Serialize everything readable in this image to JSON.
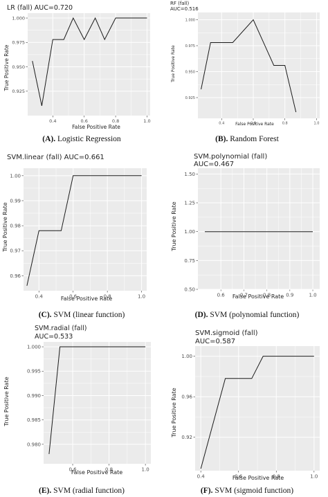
{
  "colors": {
    "panel_bg": "#ebebeb",
    "grid": "#ffffff",
    "line": "#1a1a1a",
    "text": "#222222"
  },
  "panels": [
    {
      "id": "A",
      "title": "LR (fall) AUC=0.720",
      "xlabel": "False Positive Rate",
      "ylabel": "True Positive Rate",
      "caption_label": "(A).",
      "caption_text": " Logistic Regression",
      "chart_data": {
        "type": "line",
        "x_range": [
          0.24,
          1.02
        ],
        "y_range": [
          0.9,
          1.005
        ],
        "x_ticks": [
          0.4,
          0.6,
          0.8,
          1.0
        ],
        "x_tick_labels": [
          "0.4",
          "0.6",
          "0.8",
          "1.0"
        ],
        "y_ticks": [
          0.925,
          0.95,
          0.975,
          1.0
        ],
        "y_tick_labels": [
          "0.925",
          "0.950",
          "0.975",
          "1.000"
        ],
        "grid": true,
        "points": [
          [
            0.27,
            0.956
          ],
          [
            0.33,
            0.91
          ],
          [
            0.4,
            0.978
          ],
          [
            0.47,
            0.978
          ],
          [
            0.53,
            1.0
          ],
          [
            0.6,
            0.978
          ],
          [
            0.67,
            1.0
          ],
          [
            0.73,
            0.978
          ],
          [
            0.8,
            1.0
          ],
          [
            1.0,
            1.0
          ]
        ]
      }
    },
    {
      "id": "B",
      "title": "RF (fall)",
      "title2": "AUC=0.516",
      "xlabel": "False Positive Rate",
      "ylabel": "True Positive Rate",
      "caption_label": "(B).",
      "caption_text": " Random Forest",
      "chart_data": {
        "type": "line",
        "x_range": [
          0.25,
          1.02
        ],
        "y_range": [
          0.905,
          1.007
        ],
        "x_ticks": [
          0.4,
          0.6,
          0.8,
          1.0
        ],
        "x_tick_labels": [
          "0.4",
          "0.6",
          "0.8",
          "1.0"
        ],
        "y_ticks": [
          0.925,
          0.95,
          0.975,
          1.0
        ],
        "y_tick_labels": [
          "0.925",
          "0.950",
          "0.975",
          "1.000"
        ],
        "grid": true,
        "points": [
          [
            0.27,
            0.933
          ],
          [
            0.33,
            0.978
          ],
          [
            0.47,
            0.978
          ],
          [
            0.6,
            1.0
          ],
          [
            0.73,
            0.956
          ],
          [
            0.8,
            0.956
          ],
          [
            0.87,
            0.911
          ]
        ]
      }
    },
    {
      "id": "C",
      "title": "SVM.linear (fall) AUC=0.661",
      "xlabel": "False Positive Rate",
      "ylabel": "True Positive Rate",
      "caption_label": "(C).",
      "caption_text": " SVM (linear function)",
      "chart_data": {
        "type": "line",
        "x_range": [
          0.31,
          1.03
        ],
        "y_range": [
          0.954,
          1.003
        ],
        "x_ticks": [
          0.4,
          0.6,
          0.8,
          1.0
        ],
        "x_tick_labels": [
          "0.4",
          "0.6",
          "0.8",
          "1.0"
        ],
        "y_ticks": [
          0.96,
          0.97,
          0.98,
          0.99,
          1.0
        ],
        "y_tick_labels": [
          "0.96",
          "0.97",
          "0.98",
          "0.99",
          "1.00"
        ],
        "grid": true,
        "points": [
          [
            0.33,
            0.956
          ],
          [
            0.4,
            0.978
          ],
          [
            0.53,
            0.978
          ],
          [
            0.6,
            1.0
          ],
          [
            1.0,
            1.0
          ]
        ]
      }
    },
    {
      "id": "D",
      "title": "SVM.polynomial (fall)",
      "title2": "AUC=0.467",
      "xlabel": "False Positive Rate",
      "ylabel": "True Positive Rate",
      "caption_label": "(D).",
      "caption_text": " SVM (polynomial function)",
      "chart_data": {
        "type": "line",
        "x_range": [
          0.5,
          1.03
        ],
        "y_range": [
          0.5,
          1.55
        ],
        "x_ticks": [
          0.6,
          0.7,
          0.8,
          0.9,
          1.0
        ],
        "x_tick_labels": [
          "0.6",
          "0.7",
          "0.8",
          "0.9",
          "1.0"
        ],
        "y_ticks": [
          0.5,
          0.75,
          1.0,
          1.25,
          1.5
        ],
        "y_tick_labels": [
          "0.50",
          "0.75",
          "1.00",
          "1.25",
          "1.50"
        ],
        "grid": true,
        "points": [
          [
            0.53,
            1.0
          ],
          [
            1.0,
            1.0
          ]
        ]
      }
    },
    {
      "id": "E",
      "title": "SVM.radial (fall)",
      "title2": "AUC=0.533",
      "xlabel": "False Positive Rate",
      "ylabel": "True Positive Rate",
      "caption_label": "(E).",
      "caption_text": " SVM (radial function)",
      "chart_data": {
        "type": "line",
        "x_range": [
          0.44,
          1.03
        ],
        "y_range": [
          0.976,
          1.001
        ],
        "x_ticks": [
          0.6,
          0.8,
          1.0
        ],
        "x_tick_labels": [
          "0.6",
          "0.8",
          "1.0"
        ],
        "y_ticks": [
          0.98,
          0.985,
          0.99,
          0.995,
          1.0
        ],
        "y_tick_labels": [
          "0.980",
          "0.985",
          "0.990",
          "0.995",
          "1.000"
        ],
        "grid": true,
        "points": [
          [
            0.47,
            0.978
          ],
          [
            0.53,
            1.0
          ],
          [
            1.0,
            1.0
          ]
        ]
      }
    },
    {
      "id": "F",
      "title": "SVM.sigmoid (fall)",
      "title2": "AUC=0.587",
      "xlabel": "False Positive Rate",
      "ylabel": "True Positive Rate",
      "caption_label": "(F).",
      "caption_text": " SVM (sigmoid function)",
      "chart_data": {
        "type": "line",
        "x_range": [
          0.37,
          1.03
        ],
        "y_range": [
          0.887,
          1.01
        ],
        "x_ticks": [
          0.4,
          0.6,
          0.8,
          1.0
        ],
        "x_tick_labels": [
          "0.4",
          "0.6",
          "0.8",
          "1.0"
        ],
        "y_ticks": [
          0.92,
          0.96,
          1.0
        ],
        "y_tick_labels": [
          "0.92",
          "0.96",
          "1.00"
        ],
        "grid": true,
        "points": [
          [
            0.4,
            0.889
          ],
          [
            0.53,
            0.978
          ],
          [
            0.67,
            0.978
          ],
          [
            0.73,
            1.0
          ],
          [
            1.0,
            1.0
          ]
        ]
      }
    }
  ]
}
